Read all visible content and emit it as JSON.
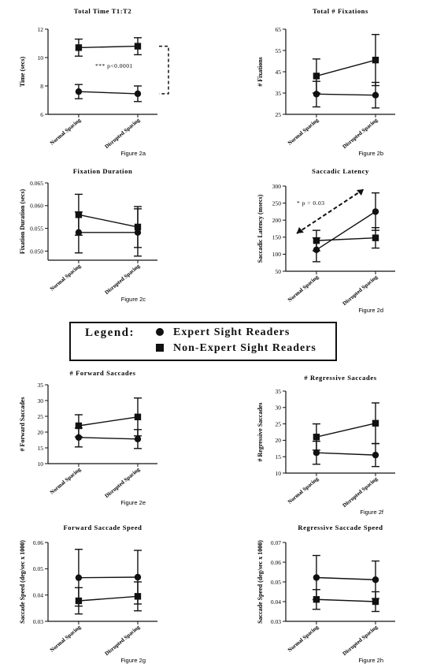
{
  "legend": {
    "title": "Legend:",
    "expert_label": "Expert Sight Readers",
    "nonexpert_label": "Non-Expert Sight Readers"
  },
  "chart_data": [
    {
      "type": "line",
      "title": "Total Time T1:T2",
      "ylabel": "Time (secs)",
      "categories": [
        "Normal Spacing",
        "Disrupted Spacing"
      ],
      "ylim": [
        6,
        12
      ],
      "yticks": [
        "6",
        "8",
        "10",
        "12"
      ],
      "figure_label": "Figure 2a",
      "series": [
        {
          "name": "Expert Sight Readers",
          "marker": "circle",
          "values": [
            7.6,
            7.45
          ],
          "err": [
            0.5,
            0.55
          ]
        },
        {
          "name": "Non-Expert Sight Readers",
          "marker": "square",
          "values": [
            10.7,
            10.8
          ],
          "err": [
            0.6,
            0.6
          ]
        }
      ],
      "annotation": {
        "text": "*** p<0.0001",
        "style": "bracket",
        "from": 10.8,
        "to": 7.45
      }
    },
    {
      "type": "line",
      "title": "Total # Fixations",
      "ylabel": "# Fixations",
      "categories": [
        "Normal Spacing",
        "Disrupted Spacing"
      ],
      "ylim": [
        25,
        65
      ],
      "yticks": [
        "25",
        "35",
        "45",
        "55",
        "65"
      ],
      "figure_label": "Figure 2b",
      "series": [
        {
          "name": "Expert Sight Readers",
          "marker": "circle",
          "values": [
            34.5,
            34
          ],
          "err": [
            6,
            6
          ]
        },
        {
          "name": "Non-Expert Sight Readers",
          "marker": "square",
          "values": [
            43,
            50.5
          ],
          "err": [
            8,
            12
          ]
        }
      ]
    },
    {
      "type": "line",
      "title": "Fixation Duration",
      "ylabel": "Fixation Duration (secs)",
      "categories": [
        "Normal Spacing",
        "Disrupted Spacing"
      ],
      "ylim": [
        0.048,
        0.065
      ],
      "yticks": [
        "0.050",
        "0.055",
        "0.060",
        "0.065"
      ],
      "figure_label": "Figure 2c",
      "series": [
        {
          "name": "Expert Sight Readers",
          "marker": "circle",
          "values": [
            0.0541,
            0.0541
          ],
          "err": [
            0.0045,
            0.0052
          ]
        },
        {
          "name": "Non-Expert Sight Readers",
          "marker": "square",
          "values": [
            0.058,
            0.0553
          ],
          "err": [
            0.0045,
            0.0045
          ]
        }
      ]
    },
    {
      "type": "line",
      "title": "Saccadic Latency",
      "ylabel": "Saccadic Latency (msecs)",
      "categories": [
        "Normal Spacing",
        "Disrupted Spacing"
      ],
      "ylim": [
        50,
        300
      ],
      "yticks": [
        "50",
        "100",
        "150",
        "200",
        "250",
        "300"
      ],
      "figure_label": "Figure 2d",
      "series": [
        {
          "name": "Expert Sight Readers",
          "marker": "circle",
          "values": [
            113,
            225
          ],
          "err": [
            35,
            55
          ]
        },
        {
          "name": "Non-Expert Sight Readers",
          "marker": "square",
          "values": [
            140,
            148
          ],
          "err": [
            30,
            30
          ]
        }
      ],
      "annotation": {
        "text": "* p = 0.03",
        "style": "arrow"
      }
    },
    {
      "type": "line",
      "title": "# Forward Saccades",
      "ylabel": "# Forward Saccades",
      "categories": [
        "Normal Spacing",
        "Disrupted Spacing"
      ],
      "ylim": [
        10,
        35
      ],
      "yticks": [
        "10",
        "15",
        "20",
        "25",
        "30",
        "35"
      ],
      "figure_label": "Figure 2e",
      "series": [
        {
          "name": "Expert Sight Readers",
          "marker": "circle",
          "values": [
            18.3,
            17.8
          ],
          "err": [
            3,
            3
          ]
        },
        {
          "name": "Non-Expert Sight Readers",
          "marker": "square",
          "values": [
            22,
            24.8
          ],
          "err": [
            3.5,
            6
          ]
        }
      ]
    },
    {
      "type": "line",
      "title": "# Regressive Saccades",
      "ylabel": "# Regressive Saccades",
      "categories": [
        "Normal Spacing",
        "Disrupted Spacing"
      ],
      "ylim": [
        10,
        35
      ],
      "yticks": [
        "10",
        "15",
        "20",
        "25",
        "30",
        "35"
      ],
      "figure_label": "Figure 2f",
      "series": [
        {
          "name": "Expert Sight Readers",
          "marker": "circle",
          "values": [
            16.2,
            15.5
          ],
          "err": [
            3.5,
            3.5
          ]
        },
        {
          "name": "Non-Expert Sight Readers",
          "marker": "square",
          "values": [
            21,
            25.2
          ],
          "err": [
            4,
            6.2
          ]
        }
      ]
    },
    {
      "type": "line",
      "title": "Forward Saccade Speed",
      "ylabel": "Saccade Speed (deg/sec x 1000)",
      "categories": [
        "Normal Spacing",
        "Disrupted Spacing"
      ],
      "ylim": [
        0.03,
        0.06
      ],
      "yticks": [
        "0.03",
        "0.04",
        "0.05",
        "0.06"
      ],
      "figure_label": "Figure 2g",
      "series": [
        {
          "name": "Expert Sight Readers",
          "marker": "circle",
          "values": [
            0.0466,
            0.0468
          ],
          "err": [
            0.0108,
            0.0102
          ]
        },
        {
          "name": "Non-Expert Sight Readers",
          "marker": "square",
          "values": [
            0.0378,
            0.0395
          ],
          "err": [
            0.005,
            0.0055
          ]
        }
      ]
    },
    {
      "type": "line",
      "title": "Regressive Saccade Speed",
      "ylabel": "Saccade Speed (deg/sec x 1000)",
      "categories": [
        "Normal Spacing",
        "Disrupted Spacing"
      ],
      "ylim": [
        0.03,
        0.07
      ],
      "yticks": [
        "0.03",
        "0.04",
        "0.05",
        "0.06",
        "0.07"
      ],
      "figure_label": "Figure 2h",
      "series": [
        {
          "name": "Expert Sight Readers",
          "marker": "circle",
          "values": [
            0.0522,
            0.0511
          ],
          "err": [
            0.0112,
            0.0095
          ]
        },
        {
          "name": "Non-Expert Sight Readers",
          "marker": "square",
          "values": [
            0.0411,
            0.04
          ],
          "err": [
            0.005,
            0.005
          ]
        }
      ]
    }
  ]
}
